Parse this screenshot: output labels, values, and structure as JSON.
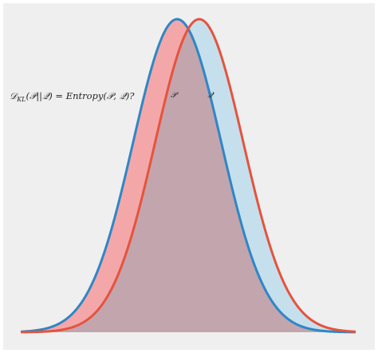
{
  "chart_data": {
    "type": "area",
    "annotation": "𝒟_KL(𝒫||𝒬) = Entropy(𝒫, 𝒬)?",
    "annotation_parts": {
      "lhs_symbol": "𝒟",
      "lhs_subscript": "KL",
      "lhs_args": "(𝒫||𝒬) = ",
      "rhs": "Entropy(𝒫, 𝒬)?"
    },
    "series": [
      {
        "name": "𝒫",
        "mean": -0.25,
        "sd": 1.0,
        "peak": 1.0,
        "line_color": "#2f86c6",
        "fill_color": "#f4a7a8"
      },
      {
        "name": "𝒬",
        "mean": 0.25,
        "sd": 1.0,
        "peak": 1.0,
        "line_color": "#e6533d",
        "fill_color": "#c5e0ec"
      }
    ],
    "overlap_color": "#c3a5ae",
    "xlim": [
      -3.8,
      3.8
    ],
    "ylim": [
      0,
      1.0
    ],
    "background": "#efefef",
    "grid": false
  }
}
